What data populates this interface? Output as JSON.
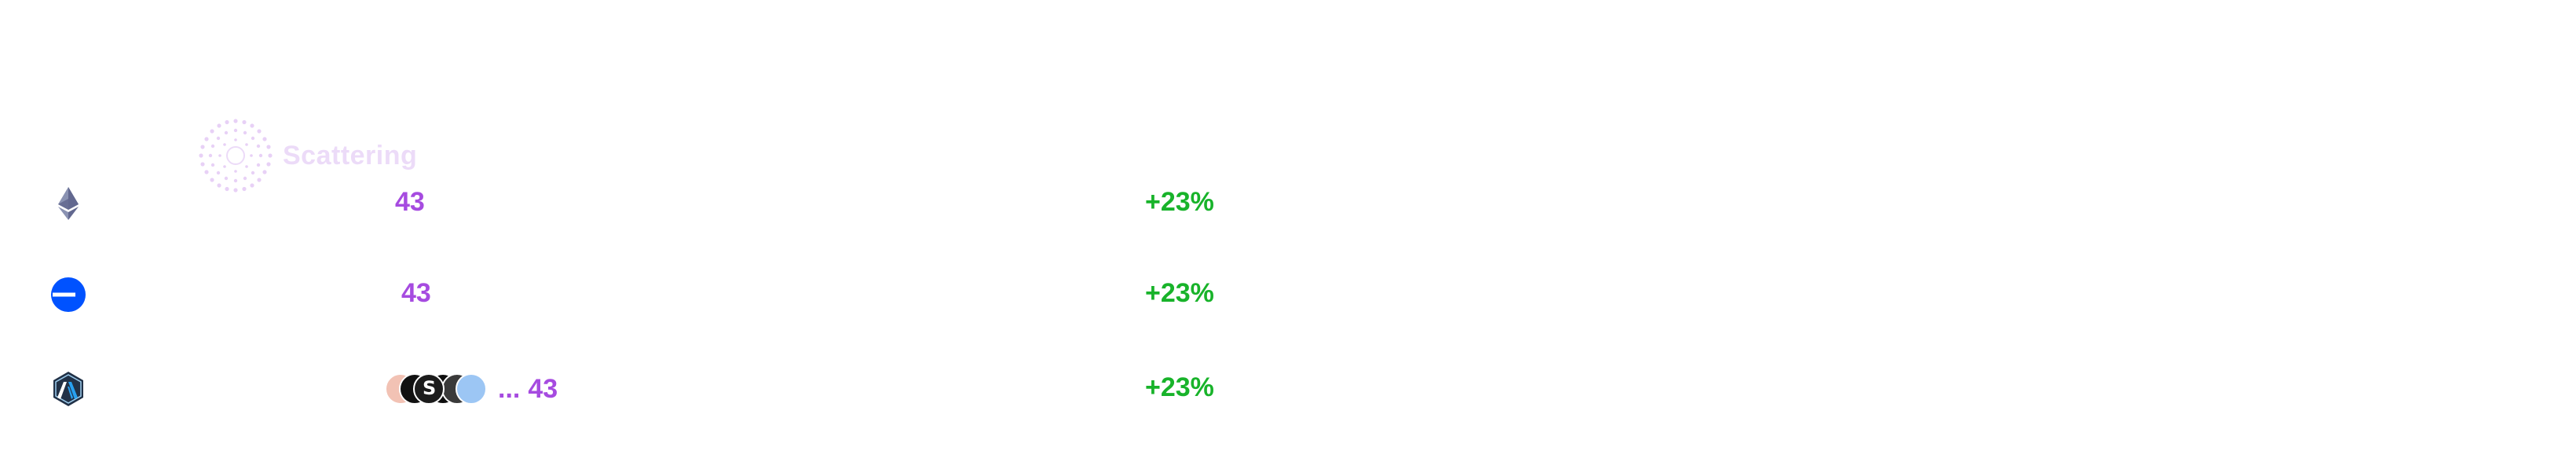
{
  "watermark": {
    "label": "Scattering"
  },
  "rows": [
    {
      "chain_icon": "ethereum-icon",
      "count": "43",
      "change": "+23%"
    },
    {
      "chain_icon": "base-icon",
      "count": "43",
      "change": "+23%"
    },
    {
      "chain_icon": "arbitrum-icon",
      "count": "43",
      "ellipsis": "...",
      "change": "+23%",
      "avatars": [
        "avatar-1",
        "avatar-2",
        "avatar-3",
        "avatar-4",
        "avatar-5",
        "avatar-6"
      ]
    }
  ],
  "colors": {
    "count": "#a64be0",
    "change": "#18b32a",
    "base_blue": "#0052ff",
    "arbitrum_navy": "#213147",
    "arbitrum_blue": "#28a0f0",
    "watermark": "#ead8f8"
  }
}
